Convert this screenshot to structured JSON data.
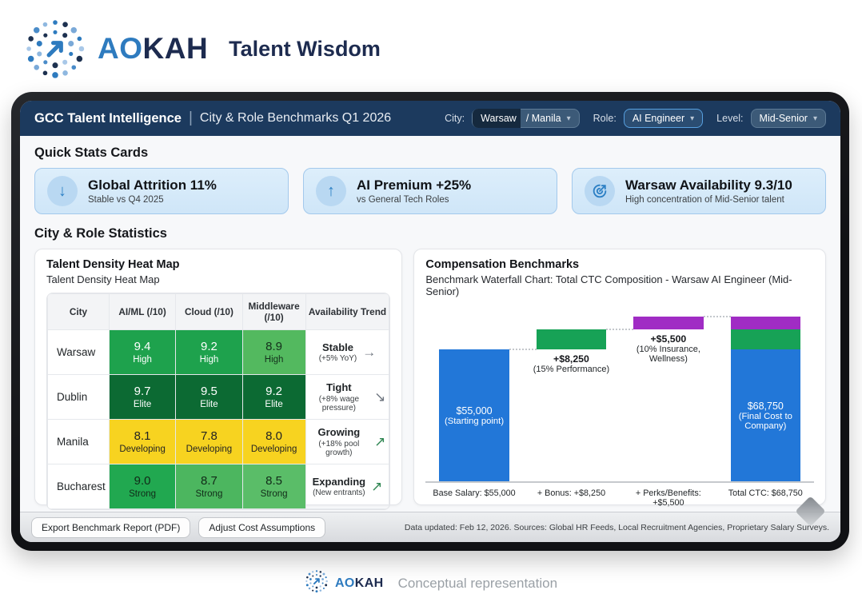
{
  "brand": {
    "name_blue": "AO",
    "name_dark": "KAH",
    "product": "Talent Wisdom"
  },
  "header": {
    "title_bold": "GCC Talent Intelligence",
    "title_separator": "|",
    "title_rest": "City & Role Benchmarks Q1 2026",
    "filters": [
      {
        "name": "city",
        "label": "City:",
        "value_primary": "Warsaw",
        "value_secondary": "/ Manila",
        "highlight": false
      },
      {
        "name": "role",
        "label": "Role:",
        "value": "AI Engineer",
        "highlight": true
      },
      {
        "name": "level",
        "label": "Level:",
        "value": "Mid-Senior",
        "highlight": false
      }
    ]
  },
  "quick_stats": {
    "section_title": "Quick Stats Cards",
    "cards": [
      {
        "icon": "arrow-down-icon",
        "glyph": "↓",
        "title": "Global Attrition 11%",
        "subtitle": "Stable vs Q4 2025"
      },
      {
        "icon": "arrow-up-icon",
        "glyph": "↑",
        "title": "AI Premium +25%",
        "subtitle": "vs General Tech Roles"
      },
      {
        "icon": "target-icon",
        "glyph": "target",
        "title": "Warsaw Availability 9.3/10",
        "subtitle": "High concentration of Mid-Senior talent"
      }
    ]
  },
  "statistics_section_title": "City & Role Statistics",
  "heatmap": {
    "title": "Talent Density Heat Map",
    "subtitle": "Talent Density Heat Map",
    "columns": [
      "City",
      "AI/ML (/10)",
      "Cloud (/10)",
      "Middleware (/10)",
      "Availability Trend"
    ],
    "rows": [
      {
        "city": "Warsaw",
        "cells": [
          {
            "score": "9.4",
            "label": "High",
            "bg": "#1ea24d",
            "fg": "#ffffff"
          },
          {
            "score": "9.2",
            "label": "High",
            "bg": "#1ea24d",
            "fg": "#ffffff"
          },
          {
            "score": "8.9",
            "label": "High",
            "bg": "#53b95f",
            "fg": "#14301c"
          }
        ],
        "trend": {
          "status": "Stable",
          "detail": "(+5% YoY)",
          "arrow": "→",
          "arrow_color": "#6f7680"
        }
      },
      {
        "city": "Dublin",
        "cells": [
          {
            "score": "9.7",
            "label": "Elite",
            "bg": "#0c6a33",
            "fg": "#ffffff"
          },
          {
            "score": "9.5",
            "label": "Elite",
            "bg": "#0c6a33",
            "fg": "#ffffff"
          },
          {
            "score": "9.2",
            "label": "Elite",
            "bg": "#0c6a33",
            "fg": "#ffffff"
          }
        ],
        "trend": {
          "status": "Tight",
          "detail": "(+8% wage pressure)",
          "arrow": "↘",
          "arrow_color": "#6f7680"
        }
      },
      {
        "city": "Manila",
        "cells": [
          {
            "score": "8.1",
            "label": "Developing",
            "bg": "#f7d320",
            "fg": "#232323"
          },
          {
            "score": "7.8",
            "label": "Developing",
            "bg": "#f7d320",
            "fg": "#232323"
          },
          {
            "score": "8.0",
            "label": "Developing",
            "bg": "#f7d320",
            "fg": "#232323"
          }
        ],
        "trend": {
          "status": "Growing",
          "detail": "(+18% pool growth)",
          "arrow": "↗",
          "arrow_color": "#2f8652"
        }
      },
      {
        "city": "Bucharest",
        "cells": [
          {
            "score": "9.0",
            "label": "Strong",
            "bg": "#21a850",
            "fg": "#112a18"
          },
          {
            "score": "8.7",
            "label": "Strong",
            "bg": "#4cb65f",
            "fg": "#112a18"
          },
          {
            "score": "8.5",
            "label": "Strong",
            "bg": "#5abd68",
            "fg": "#112a18"
          }
        ],
        "trend": {
          "status": "Expanding",
          "detail": "(New entrants)",
          "arrow": "↗",
          "arrow_color": "#2f8652"
        }
      }
    ]
  },
  "chart_data": {
    "type": "bar",
    "subtype": "waterfall",
    "title": "Compensation Benchmarks",
    "subtitle": "Benchmark Waterfall Chart: Total CTC Composition - Warsaw AI Engineer (Mid-Senior)",
    "currency": "USD",
    "ylim": [
      0,
      68750
    ],
    "bars": [
      {
        "name": "base-salary",
        "start": 0,
        "end": 55000,
        "value": 55000,
        "color": "#2277d8",
        "inside_label": [
          "$55,000",
          "(Starting point)"
        ],
        "axis_label": "Base Salary: $55,000"
      },
      {
        "name": "bonus",
        "start": 55000,
        "end": 63250,
        "value": 8250,
        "color": "#17a256",
        "below_label": [
          "+$8,250",
          "(15% Performance)"
        ],
        "axis_label": "+ Bonus: +$8,250"
      },
      {
        "name": "perks-benefits",
        "start": 63250,
        "end": 68750,
        "value": 5500,
        "color": "#a02cc4",
        "below_label": [
          "+$5,500",
          "(10% Insurance,",
          "Wellness)"
        ],
        "axis_label": "+ Perks/Benefits: +$5,500"
      },
      {
        "name": "total-ctc",
        "start": 0,
        "end": 68750,
        "value": 68750,
        "segments": [
          {
            "name": "base",
            "value": 55000,
            "color": "#2277d8"
          },
          {
            "name": "bonus",
            "value": 8250,
            "color": "#17a256"
          },
          {
            "name": "perks",
            "value": 5500,
            "color": "#a02cc4"
          }
        ],
        "inside_label": [
          "$68,750",
          "(Final Cost to",
          "Company)"
        ],
        "axis_label": "Total CTC: $68,750"
      }
    ]
  },
  "bottom_bar": {
    "buttons": [
      {
        "name": "export-benchmark-report-button",
        "label": "Export Benchmark Report (PDF)"
      },
      {
        "name": "adjust-cost-assumptions-button",
        "label": "Adjust Cost Assumptions"
      }
    ],
    "data_note": "Data updated: Feb 12, 2026. Sources: Global HR Feeds, Local Recruitment Agencies, Proprietary Salary Surveys."
  },
  "footer": {
    "brand_blue": "AO",
    "brand_dark": "KAH",
    "note": "Conceptual representation"
  },
  "colors": {
    "accent_blue": "#2b7fc4",
    "header_navy": "#1c3a5e",
    "green_high": "#1ea24d",
    "green_elite": "#0c6a33",
    "green_light": "#53b95f",
    "green_strong": "#21a850",
    "yellow_developing": "#f7d320",
    "bar_blue": "#2277d8",
    "bar_green": "#17a256",
    "bar_purple": "#a02cc4"
  }
}
